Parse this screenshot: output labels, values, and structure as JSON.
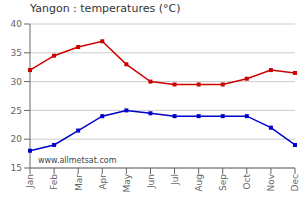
{
  "chart_data": {
    "type": "line",
    "title": "Yangon : temperatures (°C)",
    "categories": [
      "Jan",
      "Feb",
      "Mar",
      "Apr",
      "May",
      "Jun",
      "Jul",
      "Aug",
      "Sep",
      "Oct",
      "Nov",
      "Dec"
    ],
    "series": [
      {
        "color": "#cc0000",
        "marker": "square",
        "values": [
          32.0,
          34.5,
          36.0,
          37.0,
          33.0,
          30.0,
          29.5,
          29.5,
          29.5,
          30.5,
          32.0,
          31.5
        ]
      },
      {
        "color": "#0000cc",
        "marker": "square",
        "values": [
          18.0,
          19.0,
          21.5,
          24.0,
          25.0,
          24.5,
          24.0,
          24.0,
          24.0,
          24.0,
          22.0,
          19.0
        ]
      }
    ],
    "ylim": [
      15,
      40
    ],
    "yticks": [
      15,
      20,
      25,
      30,
      35,
      40
    ],
    "grid": "y",
    "annotations": [
      "www.allmetsat.com"
    ]
  }
}
